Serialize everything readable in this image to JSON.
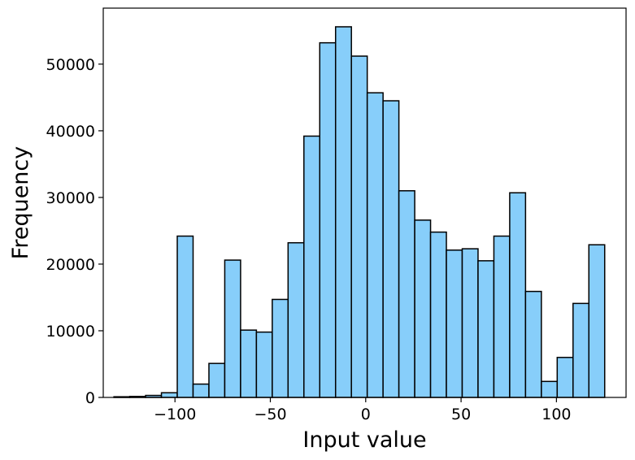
{
  "chart_data": {
    "type": "bar",
    "title": "",
    "xlabel": "Input value",
    "ylabel": "Frequency",
    "bar_color": "#87cefa",
    "edge_color": "#000000",
    "grid": false,
    "xlim": [
      -137.6,
      136.5
    ],
    "ylim": [
      0,
      58400
    ],
    "xticks": [
      {
        "value": -100,
        "label": "−100"
      },
      {
        "value": -50,
        "label": "−50"
      },
      {
        "value": 0,
        "label": "0"
      },
      {
        "value": 50,
        "label": "50"
      },
      {
        "value": 100,
        "label": "100"
      }
    ],
    "yticks": [
      {
        "value": 0,
        "label": "0"
      },
      {
        "value": 10000,
        "label": "10000"
      },
      {
        "value": 20000,
        "label": "20000"
      },
      {
        "value": 30000,
        "label": "30000"
      },
      {
        "value": 40000,
        "label": "40000"
      },
      {
        "value": 50000,
        "label": "50000"
      }
    ],
    "bin_edges": [
      -132.0,
      -123.7,
      -115.4,
      -107.1,
      -98.8,
      -90.5,
      -82.2,
      -73.9,
      -65.6,
      -57.3,
      -49.0,
      -40.7,
      -32.4,
      -24.1,
      -15.8,
      -7.5,
      0.8,
      9.1,
      17.4,
      25.7,
      34.0,
      42.3,
      50.6,
      58.9,
      67.2,
      75.5,
      83.8,
      92.1,
      100.4,
      108.7,
      117.0,
      125.3
    ],
    "values": [
      100,
      150,
      300,
      700,
      24200,
      2000,
      5100,
      20600,
      10100,
      9800,
      14700,
      23200,
      39200,
      53200,
      55600,
      51200,
      45700,
      44500,
      31000,
      26600,
      24800,
      22100,
      22300,
      20500,
      24200,
      30700,
      15900,
      2400,
      6000,
      14100,
      22900
    ]
  }
}
